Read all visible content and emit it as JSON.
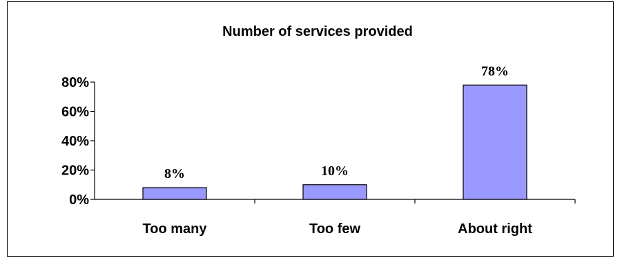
{
  "chart_data": {
    "type": "bar",
    "title": "Number of services provided",
    "categories": [
      "Too many",
      "Too few",
      "About right"
    ],
    "values": [
      8,
      10,
      78
    ],
    "data_labels": [
      "8%",
      "10%",
      "78%"
    ],
    "ylim": [
      0,
      80
    ],
    "yticks": [
      0,
      20,
      40,
      60,
      80
    ],
    "ytick_labels": [
      "0%",
      "20%",
      "40%",
      "60%",
      "80%"
    ],
    "xlabel": "",
    "ylabel": "",
    "grid": false,
    "legend": "none",
    "bar_color": "#9999ff",
    "bar_edge_color": "#000000"
  }
}
